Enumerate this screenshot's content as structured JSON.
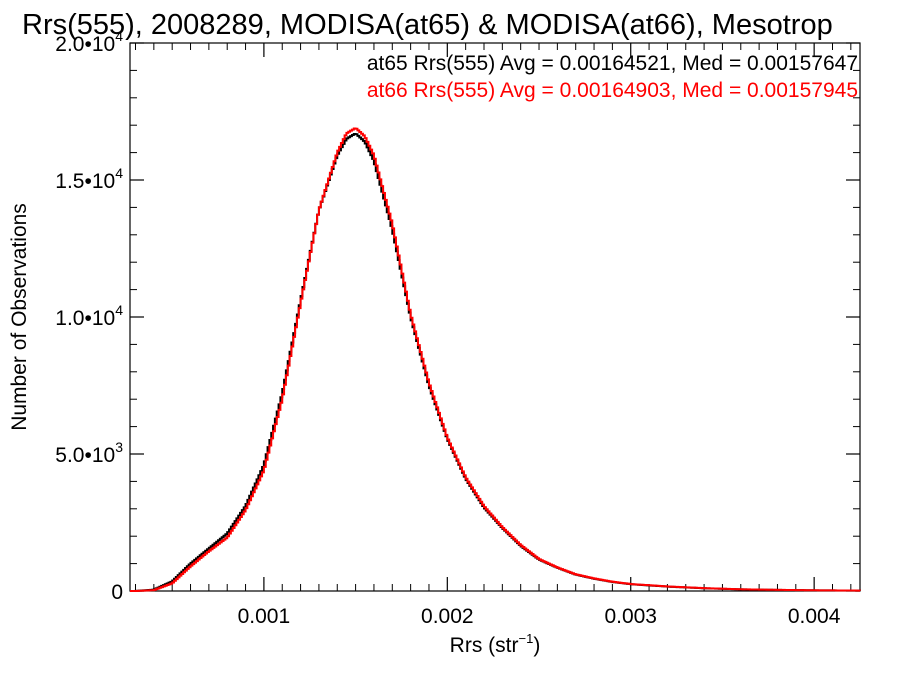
{
  "chart_data": {
    "type": "line",
    "title": "Rrs(555), 2008289, MODISA(at65) & MODISA(at66), Mesotrop",
    "xlabel": {
      "base": "Rrs (str",
      "sup": "−1",
      "end": ")"
    },
    "ylabel": "Number of Observations",
    "xlim": [
      0.00027,
      0.00425
    ],
    "ylim": [
      0,
      20000
    ],
    "x_ticks": [
      {
        "value": 0.001,
        "label": "0.001"
      },
      {
        "value": 0.002,
        "label": "0.002"
      },
      {
        "value": 0.003,
        "label": "0.003"
      },
      {
        "value": 0.004,
        "label": "0.004"
      }
    ],
    "y_ticks": [
      {
        "value": 0,
        "mant": "0",
        "exp": ""
      },
      {
        "value": 5000,
        "mant": "5.0•10",
        "exp": "3"
      },
      {
        "value": 10000,
        "mant": "1.0•10",
        "exp": "4"
      },
      {
        "value": 15000,
        "mant": "1.5•10",
        "exp": "4"
      },
      {
        "value": 20000,
        "mant": "2.0•10",
        "exp": "4"
      }
    ],
    "annotations": [
      {
        "text": "at65 Rrs(555) Avg = 0.00164521, Med = 0.00157647",
        "color": "#000000"
      },
      {
        "text": "at66 Rrs(555) Avg = 0.00164903, Med = 0.00157945",
        "color": "#ff0000"
      }
    ],
    "series": [
      {
        "color": "#000000",
        "x": [
          0.0003,
          0.0004,
          0.0005,
          0.0006,
          0.0007,
          0.0008,
          0.0009,
          0.001,
          0.0011,
          0.0012,
          0.0013,
          0.0014,
          0.00145,
          0.0015,
          0.00155,
          0.0016,
          0.0017,
          0.0018,
          0.0019,
          0.002,
          0.0021,
          0.0022,
          0.0023,
          0.0024,
          0.0025,
          0.0026,
          0.0027,
          0.0028,
          0.0029,
          0.003,
          0.0032,
          0.0034,
          0.0036,
          0.0038,
          0.004,
          0.00425
        ],
        "y": [
          0,
          50,
          350,
          1000,
          1550,
          2100,
          3100,
          4600,
          7200,
          10600,
          13900,
          15900,
          16500,
          16700,
          16400,
          15700,
          13200,
          10000,
          7500,
          5550,
          4100,
          3050,
          2300,
          1650,
          1150,
          850,
          600,
          450,
          330,
          250,
          160,
          100,
          60,
          40,
          25,
          15
        ]
      },
      {
        "color": "#ff0000",
        "x": [
          0.0003,
          0.0004,
          0.0005,
          0.0006,
          0.0007,
          0.0008,
          0.0009,
          0.001,
          0.0011,
          0.0012,
          0.0013,
          0.0014,
          0.00145,
          0.0015,
          0.00155,
          0.0016,
          0.0017,
          0.0018,
          0.0019,
          0.002,
          0.0021,
          0.0022,
          0.0023,
          0.0024,
          0.0025,
          0.0026,
          0.0027,
          0.0028,
          0.0029,
          0.003,
          0.0032,
          0.0034,
          0.0036,
          0.0038,
          0.004,
          0.00425
        ],
        "y": [
          0,
          30,
          280,
          900,
          1450,
          1950,
          2950,
          4400,
          7000,
          10500,
          13900,
          16000,
          16700,
          16900,
          16600,
          15900,
          13400,
          10100,
          7600,
          5600,
          4150,
          3100,
          2330,
          1680,
          1170,
          860,
          610,
          460,
          340,
          255,
          165,
          105,
          62,
          42,
          26,
          15
        ]
      }
    ],
    "grid": false,
    "legend": "top-right"
  }
}
